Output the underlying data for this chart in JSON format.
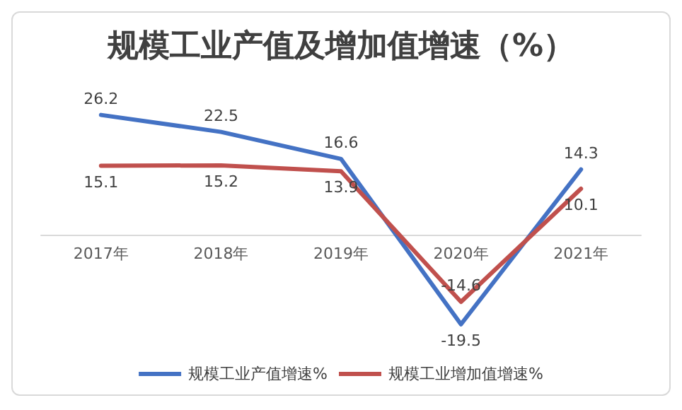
{
  "chart_data": {
    "type": "line",
    "title": "规模工业产值及增加值增速（%）",
    "categories": [
      "2017年",
      "2018年",
      "2019年",
      "2020年",
      "2021年"
    ],
    "series": [
      {
        "name": "规模工业产值增速%",
        "color": "#4472c4",
        "values": [
          26.2,
          22.5,
          16.6,
          -19.5,
          14.3
        ]
      },
      {
        "name": "规模工业增加值增速%",
        "color": "#c0504d",
        "values": [
          15.1,
          15.2,
          13.9,
          -14.6,
          10.1
        ]
      }
    ],
    "data_labels": true,
    "legend": "bottom",
    "marker": "none",
    "line_style": "solid"
  }
}
